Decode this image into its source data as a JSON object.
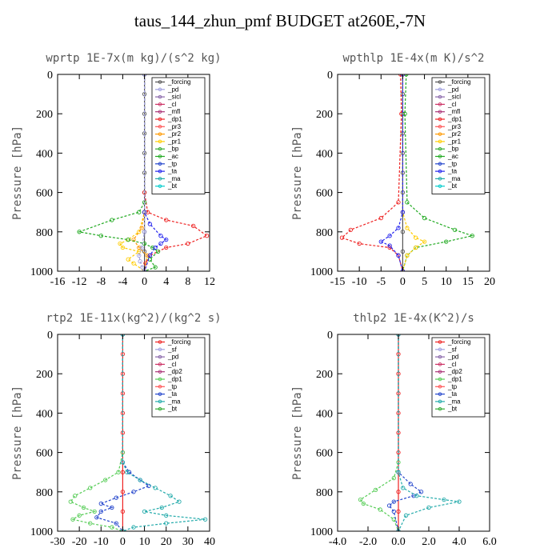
{
  "title": "taus_144_zhun_pmf  BUDGET at260E,-7N",
  "chart_data": [
    {
      "type": "line",
      "panel_title": "wprtp  1E-7x(m kg)/(s^2 kg)",
      "ylabel": "Pressure [hPa]",
      "xlim": [
        -16,
        12
      ],
      "ylim": [
        1000,
        0
      ],
      "xticks": [
        -16,
        -12,
        -8,
        -4,
        0,
        4,
        8,
        12
      ],
      "xtick_labels": [
        "-16",
        "-12",
        "-8",
        "-4",
        "0",
        "4",
        "8",
        "12"
      ],
      "yticks": [
        0,
        200,
        400,
        600,
        800,
        1000
      ],
      "ytick_labels": [
        "0",
        "200",
        "400",
        "600",
        "800",
        "1000"
      ],
      "legend": [
        "_forcing",
        "_pd",
        "_sicl",
        "_cl",
        "_mfl",
        "_dp1",
        "_pr3",
        "_pr2",
        "_pr1",
        "_bp",
        "_ac",
        "_tp",
        "_ta",
        "_ma",
        "_bt"
      ],
      "series": [
        {
          "name": "_forcing",
          "color": "#555555",
          "x": [
            0,
            0,
            0,
            0,
            0,
            0,
            0,
            0,
            0,
            0,
            0
          ],
          "y": [
            0,
            100,
            200,
            300,
            400,
            500,
            600,
            700,
            800,
            900,
            1000
          ]
        },
        {
          "name": "_dp1",
          "color": "#ee2222",
          "x": [
            0,
            0,
            0.6,
            4,
            9,
            11.5,
            8,
            4,
            1,
            0.2,
            0
          ],
          "y": [
            0,
            600,
            700,
            740,
            770,
            820,
            860,
            880,
            920,
            960,
            1000
          ]
        },
        {
          "name": "_pr1",
          "color": "#ffcc00",
          "x": [
            0,
            0,
            -1,
            -3,
            -4.5,
            -4,
            -1,
            -3,
            -2,
            0
          ],
          "y": [
            0,
            700,
            800,
            840,
            860,
            880,
            900,
            940,
            960,
            1000
          ]
        },
        {
          "name": "_pr2",
          "color": "#ff9900",
          "x": [
            0,
            0,
            -0.5,
            -2,
            -1,
            0.5,
            0
          ],
          "y": [
            0,
            700,
            780,
            840,
            880,
            920,
            1000
          ]
        },
        {
          "name": "_ac",
          "color": "#22aa22",
          "x": [
            0,
            0,
            -1,
            -6,
            -12,
            -8,
            -3,
            0,
            1.5,
            2.5,
            1,
            2,
            0
          ],
          "y": [
            0,
            650,
            700,
            740,
            800,
            820,
            840,
            860,
            880,
            900,
            940,
            980,
            1000
          ]
        },
        {
          "name": "_ta",
          "color": "#2222ee",
          "x": [
            0,
            0,
            1,
            3,
            4,
            3,
            2,
            1,
            0
          ],
          "y": [
            0,
            700,
            760,
            820,
            840,
            860,
            880,
            920,
            1000
          ]
        },
        {
          "name": "_pd",
          "color": "#a0a0e0",
          "x": [
            0,
            0,
            -0.5,
            -1,
            -0.8,
            -0.4,
            0
          ],
          "y": [
            0,
            800,
            880,
            920,
            950,
            980,
            1000
          ]
        }
      ]
    },
    {
      "type": "line",
      "panel_title": "wpthlp  1E-4x(m K)/s^2",
      "ylabel": "Pressure [hPa]",
      "xlim": [
        -15,
        20
      ],
      "ylim": [
        1000,
        0
      ],
      "xticks": [
        -15,
        -10,
        -5,
        0,
        5,
        10,
        15,
        20
      ],
      "xtick_labels": [
        "-15",
        "-10",
        "-5",
        "0",
        "5",
        "10",
        "15",
        "20"
      ],
      "yticks": [
        0,
        200,
        400,
        600,
        800,
        1000
      ],
      "ytick_labels": [
        "0",
        "200",
        "400",
        "600",
        "800",
        "1000"
      ],
      "legend": [
        "_forcing",
        "_pd",
        "_sicl",
        "_cl",
        "_mfl",
        "_dp1",
        "_pr3",
        "_pr2",
        "_pr1",
        "_bp",
        "_ac",
        "_tp",
        "_ta",
        "_ma",
        "_bt"
      ],
      "series": [
        {
          "name": "_forcing",
          "color": "#555555",
          "x": [
            0,
            0,
            0,
            0,
            0,
            0,
            0,
            0,
            0,
            0,
            0
          ],
          "y": [
            0,
            100,
            200,
            300,
            400,
            500,
            600,
            700,
            800,
            900,
            1000
          ]
        },
        {
          "name": "_dp1",
          "color": "#ee2222",
          "x": [
            -0.5,
            -0.3,
            -1,
            -5,
            -12,
            -14,
            -10,
            -3,
            -1,
            0
          ],
          "y": [
            0,
            200,
            650,
            730,
            790,
            830,
            860,
            880,
            920,
            1000
          ]
        },
        {
          "name": "_ac",
          "color": "#22aa22",
          "x": [
            0.8,
            0.5,
            1,
            5,
            12,
            16,
            10,
            3,
            1,
            0
          ],
          "y": [
            0,
            200,
            650,
            730,
            790,
            820,
            850,
            880,
            920,
            1000
          ]
        },
        {
          "name": "_pr1",
          "color": "#ffcc00",
          "x": [
            0,
            0,
            1,
            3,
            5,
            3,
            1,
            0
          ],
          "y": [
            0,
            700,
            780,
            830,
            850,
            880,
            920,
            1000
          ]
        },
        {
          "name": "_ta",
          "color": "#2222ee",
          "x": [
            0,
            0,
            -1,
            -3,
            -5,
            -3,
            -1,
            0
          ],
          "y": [
            0,
            700,
            780,
            820,
            850,
            870,
            920,
            1000
          ]
        }
      ]
    },
    {
      "type": "line",
      "panel_title": "rtp2  1E-11x(kg^2)/(kg^2 s)",
      "ylabel": "Pressure [hPa]",
      "xlim": [
        -30,
        40
      ],
      "ylim": [
        1000,
        0
      ],
      "xticks": [
        -30,
        -20,
        -10,
        0,
        10,
        20,
        30,
        40
      ],
      "xtick_labels": [
        "-30",
        "-20",
        "-10",
        "0",
        "10",
        "20",
        "30",
        "40"
      ],
      "yticks": [
        0,
        200,
        400,
        600,
        800,
        1000
      ],
      "ytick_labels": [
        "0",
        "200",
        "400",
        "600",
        "800",
        "1000"
      ],
      "legend": [
        "_forcing",
        "_sf",
        "_pd",
        "_cl",
        "_dp2",
        "_dp1",
        "_tp",
        "_ta",
        "_ma",
        "_bt"
      ],
      "series": [
        {
          "name": "_forcing",
          "color": "#ee2222",
          "x": [
            0,
            0,
            0,
            0,
            0,
            0,
            0,
            0,
            0,
            0,
            0
          ],
          "y": [
            0,
            100,
            200,
            300,
            400,
            500,
            600,
            700,
            800,
            900,
            1000
          ]
        },
        {
          "name": "_dp1",
          "color": "#55cc55",
          "x": [
            0,
            0,
            -2,
            -8,
            -15,
            -22,
            -24,
            -18,
            -13,
            -20,
            -23,
            -15,
            -5,
            0
          ],
          "y": [
            0,
            600,
            700,
            740,
            780,
            820,
            850,
            880,
            900,
            920,
            940,
            960,
            980,
            1000
          ]
        },
        {
          "name": "_ta",
          "color": "#2244cc",
          "x": [
            0,
            0,
            3,
            8,
            12,
            5,
            -3,
            -10,
            -5,
            -10,
            -12,
            -3,
            0
          ],
          "y": [
            0,
            650,
            700,
            740,
            770,
            800,
            830,
            860,
            880,
            900,
            930,
            960,
            1000
          ]
        },
        {
          "name": "_ma",
          "color": "#22aaaa",
          "x": [
            0,
            0,
            2,
            8,
            15,
            22,
            26,
            18,
            10,
            20,
            38,
            20,
            5,
            0
          ],
          "y": [
            0,
            650,
            700,
            740,
            780,
            820,
            850,
            880,
            900,
            920,
            940,
            960,
            980,
            1000
          ]
        }
      ]
    },
    {
      "type": "line",
      "panel_title": "thlp2  1E-4x(K^2)/s",
      "ylabel": "Pressure [hPa]",
      "xlim": [
        -4,
        6
      ],
      "ylim": [
        1000,
        0
      ],
      "xticks": [
        -4,
        -2,
        0,
        2,
        4,
        6
      ],
      "xtick_labels": [
        "-4.0",
        "-2.0",
        "0.0",
        "2.0",
        "4.0",
        "6.0"
      ],
      "yticks": [
        0,
        200,
        400,
        600,
        800,
        1000
      ],
      "ytick_labels": [
        "0",
        "200",
        "400",
        "600",
        "800",
        "1000"
      ],
      "legend": [
        "_forcing",
        "_sf",
        "_pd",
        "_cl",
        "_dp2",
        "_dp1",
        "_tp",
        "_ta",
        "_ma",
        "_bt"
      ],
      "series": [
        {
          "name": "_forcing",
          "color": "#ee2222",
          "x": [
            0,
            0,
            0,
            0,
            0,
            0,
            0,
            0,
            0,
            0,
            0
          ],
          "y": [
            0,
            100,
            200,
            300,
            400,
            500,
            600,
            700,
            800,
            900,
            1000
          ]
        },
        {
          "name": "_dp1",
          "color": "#55cc55",
          "x": [
            0,
            0,
            -0.3,
            -1.5,
            -2.5,
            -2.3,
            -1.2,
            -0.3,
            0
          ],
          "y": [
            0,
            650,
            730,
            790,
            840,
            860,
            890,
            940,
            1000
          ]
        },
        {
          "name": "_ta",
          "color": "#2244cc",
          "x": [
            0,
            0,
            0.8,
            1.5,
            1,
            -0.3,
            -0.6,
            -0.3,
            0
          ],
          "y": [
            0,
            700,
            760,
            800,
            820,
            850,
            870,
            900,
            1000
          ]
        },
        {
          "name": "_ma",
          "color": "#22aaaa",
          "x": [
            0,
            0,
            0.3,
            1.2,
            3.0,
            4.0,
            2.0,
            0.5,
            0
          ],
          "y": [
            0,
            700,
            780,
            820,
            840,
            850,
            880,
            920,
            1000
          ]
        }
      ]
    }
  ]
}
